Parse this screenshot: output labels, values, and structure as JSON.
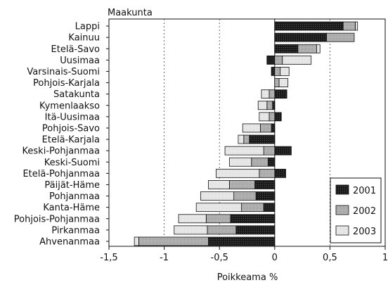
{
  "chart_data": {
    "type": "bar",
    "orientation": "horizontal-stacked",
    "title": "Maakunta",
    "xlabel": "Poikkeama %",
    "xlim": [
      -1.5,
      1
    ],
    "xticks": [
      "-1,5",
      "-1",
      "-0,5",
      "0",
      "0,5",
      "1"
    ],
    "grid": "dashed vertical at -1, -0,5, 0,5",
    "legend_position": "bottom-right",
    "categories": [
      "Lappi",
      "Kainuu",
      "Etelä-Savo",
      "Uusimaa",
      "Varsinais-Suomi",
      "Pohjois-Karjala",
      "Satakunta",
      "Kymenlaakso",
      "Itä-Uusimaa",
      "Pohjois-Savo",
      "Etelä-Karjala",
      "Keski-Pohjanmaa",
      "Keski-Suomi",
      "Etelä-Pohjanmaa",
      "Päijät-Häme",
      "Pohjanmaa",
      "Kanta-Häme",
      "Pohjois-Pohjanmaa",
      "Pirkanmaa",
      "Ahvenanmaa"
    ],
    "series": [
      {
        "name": "2001",
        "color": "#1a1a1a",
        "values": [
          0.62,
          0.47,
          0.21,
          -0.07,
          -0.03,
          0.0,
          0.11,
          -0.02,
          0.06,
          -0.03,
          -0.23,
          0.15,
          -0.06,
          0.1,
          -0.18,
          -0.17,
          -0.1,
          -0.4,
          -0.35,
          -0.6
        ]
      },
      {
        "name": "2002",
        "color": "#b8b8b8",
        "values": [
          0.11,
          0.25,
          0.17,
          0.07,
          0.05,
          0.04,
          -0.05,
          -0.05,
          -0.05,
          -0.1,
          -0.05,
          -0.1,
          -0.15,
          -0.14,
          -0.23,
          -0.2,
          -0.2,
          -0.22,
          -0.26,
          -0.63
        ]
      },
      {
        "name": "2003",
        "color": "#ececec",
        "values": [
          0.02,
          0.0,
          0.03,
          0.26,
          0.08,
          0.08,
          -0.07,
          -0.08,
          -0.09,
          -0.16,
          -0.05,
          -0.35,
          -0.2,
          -0.39,
          -0.19,
          -0.3,
          -0.41,
          -0.25,
          -0.3,
          -0.04
        ]
      }
    ]
  }
}
